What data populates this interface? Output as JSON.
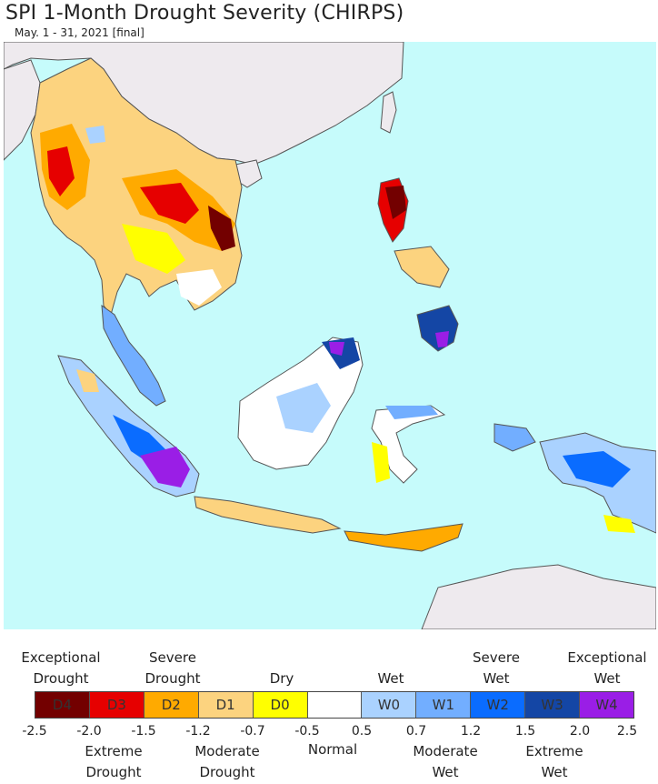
{
  "title": "SPI 1-Month Drought Severity (CHIRPS)",
  "subtitle": "May. 1 - 31, 2021 [final]",
  "colors": {
    "ocean": "#c6fbfb",
    "land_outside": "#eeeaee",
    "border": "#555555"
  },
  "legend": {
    "categories": [
      {
        "code": "D4",
        "color": "#730000"
      },
      {
        "code": "D3",
        "color": "#e60000"
      },
      {
        "code": "D2",
        "color": "#ffaa00"
      },
      {
        "code": "D1",
        "color": "#fcd37f"
      },
      {
        "code": "D0",
        "color": "#ffff00"
      },
      {
        "code": "",
        "color": "#ffffff"
      },
      {
        "code": "W0",
        "color": "#aad2ff"
      },
      {
        "code": "W1",
        "color": "#72aeff"
      },
      {
        "code": "W2",
        "color": "#0a6cff"
      },
      {
        "code": "W3",
        "color": "#1446a5"
      },
      {
        "code": "W4",
        "color": "#9a1ee6"
      }
    ],
    "top_labels": [
      {
        "line1": "Exceptional",
        "line2": "Drought"
      },
      {
        "line1": "Severe",
        "line2": "Drought"
      },
      {
        "line1": "",
        "line2": "Dry"
      },
      {
        "line1": "",
        "line2": "Wet"
      },
      {
        "line1": "Severe",
        "line2": "Wet"
      },
      {
        "line1": "Exceptional",
        "line2": "Wet"
      }
    ],
    "bottom_labels": [
      {
        "line1": "Extreme",
        "line2": "Drought"
      },
      {
        "line1": "Moderate",
        "line2": "Drought"
      },
      {
        "line1": "Normal",
        "line2": ""
      },
      {
        "line1": "Moderate",
        "line2": "Wet"
      },
      {
        "line1": "Extreme",
        "line2": "Wet"
      }
    ],
    "ticks": [
      "-2.5",
      "-2.0",
      "-1.5",
      "-1.2",
      "-0.7",
      "-0.5",
      "0.5",
      "0.7",
      "1.2",
      "1.5",
      "2.0",
      "2.5"
    ]
  }
}
